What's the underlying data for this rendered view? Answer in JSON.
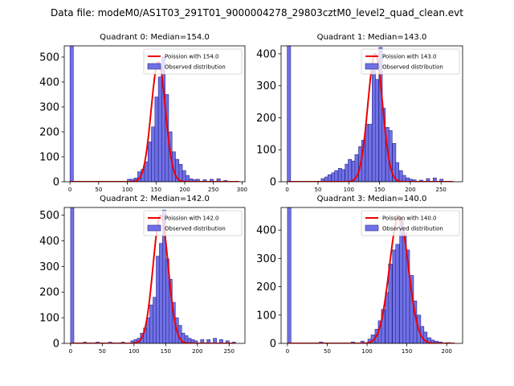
{
  "suptitle": "Data file: modeM0/AS1T03_291T01_9000004278_29803cztM0_level2_quad_clean.evt",
  "colors": {
    "hist_fill": "#7070e6",
    "hist_edge": "#2a2a8c",
    "poisson_line": "#ee0000"
  },
  "chart_data": [
    {
      "type": "bar",
      "title": "Quadrant 0: Median=154.0",
      "legend": [
        "Poission with 154.0",
        "Observed distribution"
      ],
      "legend_position": "top-right",
      "xlim": [
        -10,
        305
      ],
      "ylim": [
        0,
        545
      ],
      "xticks": [
        0,
        50,
        100,
        150,
        200,
        250,
        300
      ],
      "yticks": [
        0,
        100,
        200,
        300,
        400,
        500
      ],
      "bin_width": 5.9,
      "bars": [
        [
          0,
          545
        ],
        [
          100,
          10
        ],
        [
          106,
          10
        ],
        [
          112,
          15
        ],
        [
          118,
          40
        ],
        [
          124,
          50
        ],
        [
          130,
          80
        ],
        [
          136,
          160
        ],
        [
          142,
          220
        ],
        [
          148,
          340
        ],
        [
          154,
          420
        ],
        [
          160,
          500
        ],
        [
          166,
          350
        ],
        [
          172,
          200
        ],
        [
          178,
          120
        ],
        [
          184,
          90
        ],
        [
          190,
          70
        ],
        [
          196,
          45
        ],
        [
          202,
          25
        ],
        [
          208,
          12
        ],
        [
          214,
          8
        ],
        [
          220,
          10
        ],
        [
          232,
          8
        ],
        [
          244,
          10
        ],
        [
          256,
          12
        ],
        [
          268,
          5
        ]
      ],
      "poisson": {
        "mean": 154.0,
        "peak": 480,
        "xrange": [
          0,
          295
        ]
      }
    },
    {
      "type": "bar",
      "title": "Quadrant 1: Median=143.0",
      "legend": [
        "Poission with 143.0",
        "Observed distribution"
      ],
      "legend_position": "top-right",
      "xlim": [
        -10,
        285
      ],
      "ylim": [
        0,
        425
      ],
      "xticks": [
        0,
        50,
        100,
        150,
        200,
        250
      ],
      "yticks": [
        0,
        100,
        200,
        300,
        400
      ],
      "bin_width": 5.5,
      "bars": [
        [
          0,
          425
        ],
        [
          55,
          10
        ],
        [
          61,
          15
        ],
        [
          66,
          22
        ],
        [
          72,
          28
        ],
        [
          77,
          35
        ],
        [
          83,
          42
        ],
        [
          88,
          38
        ],
        [
          94,
          55
        ],
        [
          99,
          70
        ],
        [
          105,
          65
        ],
        [
          110,
          85
        ],
        [
          116,
          110
        ],
        [
          121,
          130
        ],
        [
          127,
          180
        ],
        [
          132,
          180
        ],
        [
          138,
          350
        ],
        [
          143,
          320
        ],
        [
          149,
          420
        ],
        [
          154,
          230
        ],
        [
          160,
          170
        ],
        [
          165,
          160
        ],
        [
          171,
          120
        ],
        [
          176,
          60
        ],
        [
          182,
          35
        ],
        [
          187,
          20
        ],
        [
          193,
          12
        ],
        [
          198,
          8
        ],
        [
          204,
          6
        ],
        [
          215,
          5
        ],
        [
          226,
          10
        ],
        [
          237,
          12
        ],
        [
          248,
          8
        ]
      ],
      "poisson": {
        "mean": 143.0,
        "peak": 400,
        "xrange": [
          0,
          270
        ]
      }
    },
    {
      "type": "bar",
      "title": "Quadrant 2: Median=142.0",
      "legend": [
        "Poission with 142.0",
        "Observed distribution"
      ],
      "legend_position": "top-right",
      "xlim": [
        -10,
        275
      ],
      "ylim": [
        0,
        530
      ],
      "xticks": [
        0,
        50,
        100,
        150,
        200,
        250
      ],
      "yticks": [
        0,
        100,
        200,
        300,
        400,
        500
      ],
      "bin_width": 5.2,
      "bars": [
        [
          0,
          530
        ],
        [
          20,
          5
        ],
        [
          40,
          5
        ],
        [
          60,
          5
        ],
        [
          80,
          5
        ],
        [
          95,
          10
        ],
        [
          100,
          15
        ],
        [
          105,
          20
        ],
        [
          110,
          40
        ],
        [
          115,
          60
        ],
        [
          120,
          100
        ],
        [
          125,
          150
        ],
        [
          130,
          180
        ],
        [
          135,
          340
        ],
        [
          140,
          390
        ],
        [
          145,
          520
        ],
        [
          150,
          330
        ],
        [
          155,
          250
        ],
        [
          160,
          160
        ],
        [
          165,
          100
        ],
        [
          170,
          70
        ],
        [
          175,
          40
        ],
        [
          180,
          30
        ],
        [
          185,
          20
        ],
        [
          190,
          15
        ],
        [
          195,
          10
        ],
        [
          205,
          15
        ],
        [
          215,
          15
        ],
        [
          225,
          20
        ],
        [
          235,
          15
        ],
        [
          245,
          10
        ],
        [
          255,
          5
        ]
      ],
      "poisson": {
        "mean": 142.0,
        "peak": 500,
        "xrange": [
          0,
          260
        ]
      }
    },
    {
      "type": "bar",
      "title": "Quadrant 3: Median=140.0",
      "legend": [
        "Poission with 140.0",
        "Observed distribution"
      ],
      "legend_position": "top-right",
      "xlim": [
        -8,
        220
      ],
      "ylim": [
        0,
        480
      ],
      "xticks": [
        0,
        50,
        100,
        150,
        200
      ],
      "yticks": [
        0,
        100,
        200,
        300,
        400
      ],
      "bin_width": 4.4,
      "bars": [
        [
          0,
          480
        ],
        [
          40,
          5
        ],
        [
          80,
          5
        ],
        [
          92,
          8
        ],
        [
          101,
          15
        ],
        [
          105,
          30
        ],
        [
          110,
          50
        ],
        [
          114,
          80
        ],
        [
          118,
          120
        ],
        [
          123,
          180
        ],
        [
          127,
          280
        ],
        [
          132,
          330
        ],
        [
          136,
          350
        ],
        [
          141,
          440
        ],
        [
          145,
          390
        ],
        [
          149,
          330
        ],
        [
          154,
          240
        ],
        [
          158,
          150
        ],
        [
          163,
          100
        ],
        [
          167,
          60
        ],
        [
          171,
          40
        ],
        [
          176,
          20
        ],
        [
          180,
          12
        ],
        [
          185,
          8
        ],
        [
          190,
          5
        ],
        [
          200,
          3
        ]
      ],
      "poisson": {
        "mean": 140.0,
        "peak": 450,
        "xrange": [
          0,
          210
        ]
      }
    }
  ]
}
